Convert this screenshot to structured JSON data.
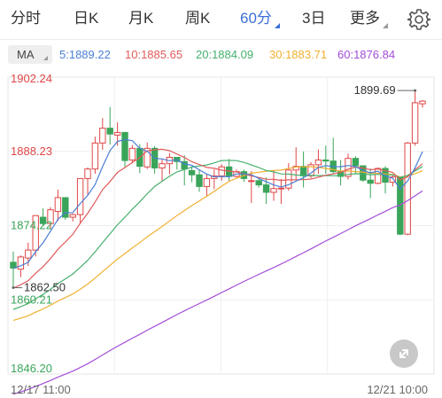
{
  "tabs": [
    {
      "label": "分时",
      "active": false
    },
    {
      "label": "日K",
      "active": false
    },
    {
      "label": "月K",
      "active": false
    },
    {
      "label": "周K",
      "active": false
    },
    {
      "label": "60分",
      "active": true,
      "dropdown": true
    },
    {
      "label": "3日",
      "active": false
    },
    {
      "label": "更多",
      "active": false,
      "dropdown": true
    }
  ],
  "icons": {
    "settings": "gear-icon",
    "zoom": "expand-icon"
  },
  "indicator": {
    "selector_label": "MA",
    "values": [
      {
        "text": "5:1889.22",
        "color": "#4a7fd6"
      },
      {
        "text": "10:1885.65",
        "color": "#e05a5a"
      },
      {
        "text": "20:1884.09",
        "color": "#46b06e"
      },
      {
        "text": "30:1883.71",
        "color": "#f0b030"
      },
      {
        "text": "60:1876.84",
        "color": "#a44ed8"
      }
    ]
  },
  "colors": {
    "up": "#e04646",
    "down": "#3aa55a",
    "accent": "#3b6fd9"
  },
  "chart_data": {
    "type": "candlestick",
    "y_axis_labels": [
      {
        "text": "1902.24",
        "value": 1902.24,
        "color": "#e04646"
      },
      {
        "text": "1888.23",
        "value": 1888.23,
        "color": "#e04646"
      },
      {
        "text": "1874.22",
        "value": 1874.22,
        "color": "#3aa55a"
      },
      {
        "text": "1860.21",
        "value": 1860.21,
        "color": "#3aa55a"
      },
      {
        "text": "1846.20",
        "value": 1846.2,
        "color": "#3aa55a"
      }
    ],
    "ylim": [
      1846.2,
      1902.24
    ],
    "x_labels": [
      "12/17 11:00",
      "12/21 10:00"
    ],
    "annotations": [
      {
        "text": "1899.69",
        "value": 1899.69,
        "type": "max"
      },
      {
        "text": "1862.50",
        "value": 1862.5,
        "type": "min"
      }
    ],
    "candles": [
      [
        1867.3,
        1869.3,
        1862.5,
        1866.2
      ],
      [
        1866.0,
        1868.6,
        1864.5,
        1868.3
      ],
      [
        1868.1,
        1871.0,
        1866.6,
        1869.6
      ],
      [
        1869.6,
        1876.2,
        1868.4,
        1876.1
      ],
      [
        1875.8,
        1877.5,
        1874.1,
        1874.6
      ],
      [
        1874.6,
        1877.7,
        1873.7,
        1877.2
      ],
      [
        1876.9,
        1881.0,
        1875.1,
        1879.5
      ],
      [
        1879.5,
        1879.5,
        1875.3,
        1875.8
      ],
      [
        1875.8,
        1876.5,
        1875.0,
        1876.3
      ],
      [
        1876.3,
        1883.2,
        1874.6,
        1883.1
      ],
      [
        1883.1,
        1885.2,
        1880.0,
        1884.9
      ],
      [
        1884.9,
        1891.0,
        1884.0,
        1889.8
      ],
      [
        1889.8,
        1894.5,
        1888.5,
        1892.6
      ],
      [
        1892.6,
        1896.6,
        1889.5,
        1891.5
      ],
      [
        1891.3,
        1893.7,
        1889.3,
        1891.8
      ],
      [
        1891.8,
        1891.8,
        1885.3,
        1886.5
      ],
      [
        1886.6,
        1889.4,
        1886.0,
        1888.8
      ],
      [
        1888.8,
        1889.6,
        1884.1,
        1885.4
      ],
      [
        1885.3,
        1889.9,
        1884.9,
        1888.8
      ],
      [
        1888.8,
        1889.2,
        1884.0,
        1885.1
      ],
      [
        1885.1,
        1886.8,
        1882.6,
        1885.9
      ],
      [
        1885.9,
        1887.9,
        1883.9,
        1887.1
      ],
      [
        1887.1,
        1887.1,
        1884.8,
        1886.3
      ],
      [
        1886.3,
        1887.5,
        1881.8,
        1884.9
      ],
      [
        1884.6,
        1885.4,
        1882.4,
        1883.8
      ],
      [
        1883.8,
        1884.8,
        1880.6,
        1881.6
      ],
      [
        1881.6,
        1884.0,
        1879.7,
        1883.1
      ],
      [
        1883.1,
        1884.8,
        1881.1,
        1883.6
      ],
      [
        1883.6,
        1885.8,
        1882.7,
        1885.3
      ],
      [
        1885.3,
        1886.8,
        1882.5,
        1883.5
      ],
      [
        1883.5,
        1884.8,
        1883.3,
        1884.4
      ],
      [
        1884.4,
        1884.8,
        1882.5,
        1883.1
      ],
      [
        1882.6,
        1884.5,
        1878.5,
        1882.7
      ],
      [
        1882.7,
        1883.0,
        1881.4,
        1881.9
      ],
      [
        1881.9,
        1883.3,
        1878.3,
        1880.5
      ],
      [
        1880.5,
        1884.6,
        1878.9,
        1881.2
      ],
      [
        1881.2,
        1883.0,
        1878.3,
        1881.3
      ],
      [
        1881.3,
        1886.0,
        1880.8,
        1884.7
      ],
      [
        1884.7,
        1889.0,
        1882.9,
        1885.4
      ],
      [
        1885.4,
        1888.2,
        1881.4,
        1883.6
      ],
      [
        1883.6,
        1886.2,
        1883.2,
        1885.7
      ],
      [
        1885.7,
        1888.6,
        1884.0,
        1886.6
      ],
      [
        1886.6,
        1889.3,
        1884.0,
        1886.4
      ],
      [
        1886.4,
        1890.8,
        1884.0,
        1884.4
      ],
      [
        1884.4,
        1886.6,
        1881.8,
        1883.5
      ],
      [
        1883.5,
        1887.8,
        1882.9,
        1886.9
      ],
      [
        1886.9,
        1887.3,
        1884.0,
        1885.5
      ],
      [
        1885.5,
        1885.5,
        1882.5,
        1882.8
      ],
      [
        1882.8,
        1885.0,
        1879.4,
        1882.2
      ],
      [
        1882.2,
        1885.2,
        1882.0,
        1885.0
      ],
      [
        1885.0,
        1885.4,
        1880.3,
        1882.4
      ],
      [
        1882.4,
        1883.9,
        1881.6,
        1883.4
      ],
      [
        1883.4,
        1883.4,
        1872.4,
        1872.6
      ],
      [
        1872.6,
        1890.0,
        1872.4,
        1889.8
      ],
      [
        1889.8,
        1899.7,
        1889.3,
        1897.4
      ],
      [
        1897.2,
        1897.9,
        1896.5,
        1897.7
      ]
    ]
  }
}
